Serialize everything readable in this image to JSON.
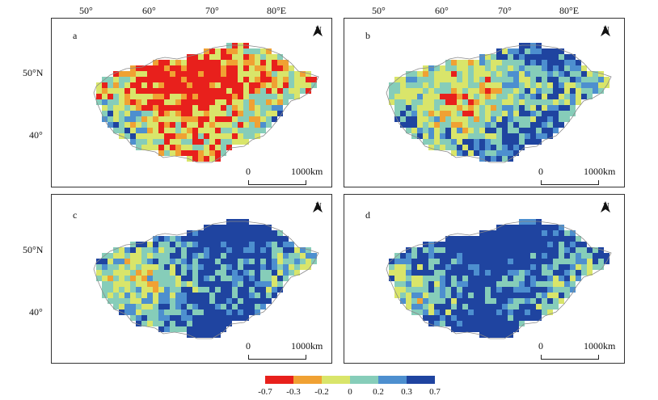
{
  "axes": {
    "lon_labels": [
      "50°",
      "60°",
      "70°",
      "80°E"
    ],
    "lat_labels": [
      "50°N",
      "40°"
    ]
  },
  "panels": [
    {
      "label": "a",
      "north": "N",
      "scale_start": "0",
      "scale_end": "1000km",
      "mean_level": -0.15
    },
    {
      "label": "b",
      "north": "N",
      "scale_start": "0",
      "scale_end": "1000km",
      "mean_level": 0.15
    },
    {
      "label": "c",
      "north": "N",
      "scale_start": "0",
      "scale_end": "1000km",
      "mean_level": 0.28
    },
    {
      "label": "d",
      "north": "N",
      "scale_start": "0",
      "scale_end": "1000km",
      "mean_level": 0.33
    }
  ],
  "legend": {
    "ticks": [
      "-0.7",
      "-0.3",
      "-0.2",
      "0",
      "0.2",
      "0.3",
      "0.7"
    ],
    "colors": [
      "#e8201c",
      "#f0a133",
      "#d9e56a",
      "#86cdb9",
      "#4d8fcf",
      "#1f44a0"
    ]
  }
}
